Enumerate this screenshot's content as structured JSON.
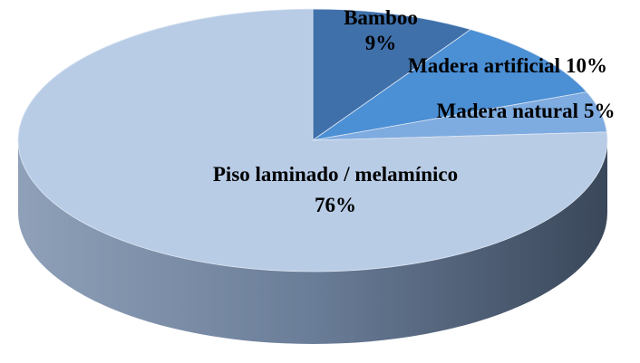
{
  "chart_data": {
    "type": "pie3d",
    "categories": [
      "Bamboo",
      "Madera artificial",
      "Madera natural",
      "Piso laminado / melamínico"
    ],
    "values": [
      9,
      10,
      5,
      76
    ],
    "value_labels": [
      "9%",
      "10%",
      "5%",
      "76%"
    ],
    "colors": [
      "#3f70aa",
      "#4b8fd5",
      "#7eabe0",
      "#b8cce6"
    ]
  }
}
